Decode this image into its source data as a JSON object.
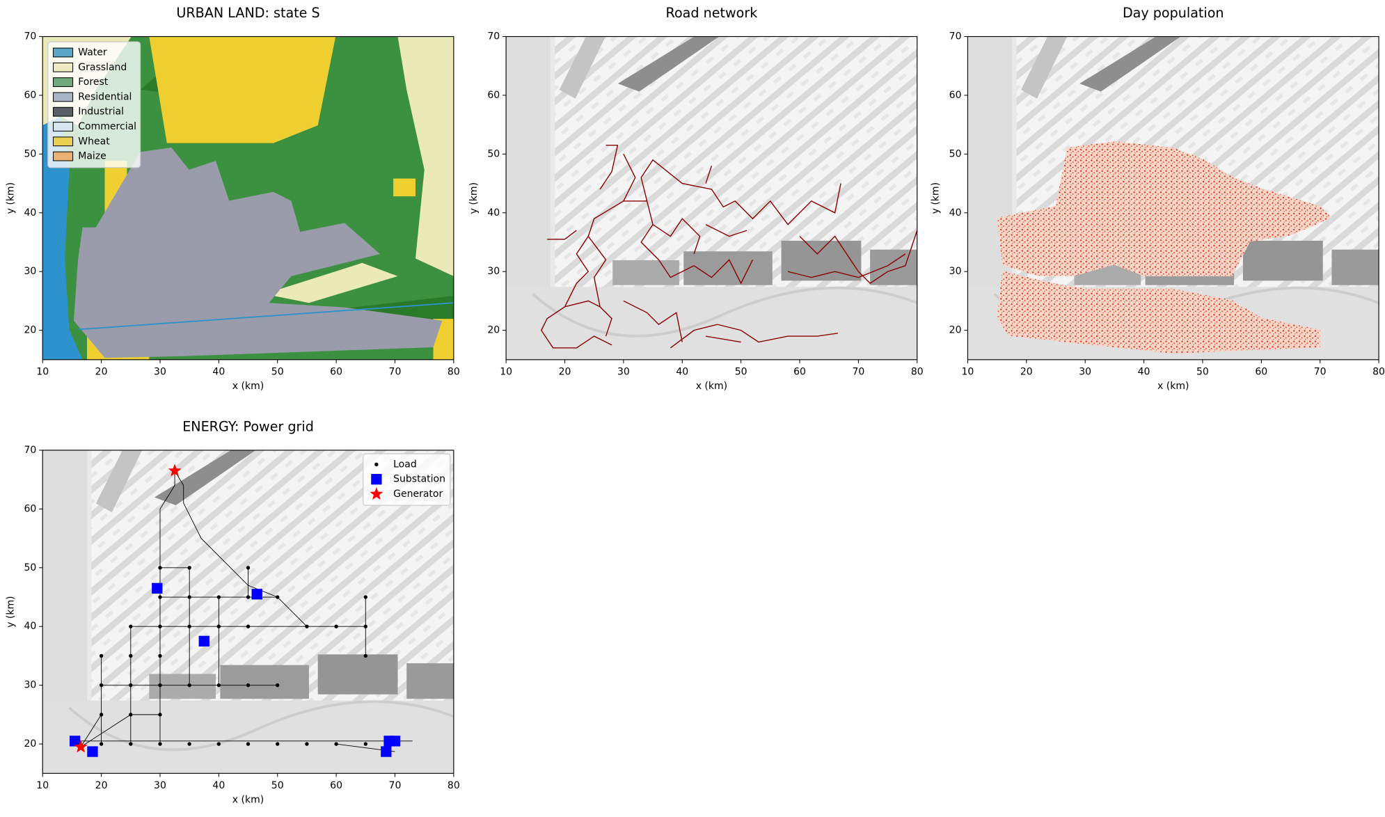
{
  "chart_data": [
    {
      "type": "landuse",
      "title": "URBAN LAND: state S",
      "xlabel": "x (km)",
      "ylabel": "y (km)",
      "xlim": [
        10,
        80
      ],
      "ylim": [
        15,
        70
      ],
      "xticks": [
        10,
        20,
        30,
        40,
        50,
        60,
        70,
        80
      ],
      "yticks": [
        20,
        30,
        40,
        50,
        60,
        70
      ],
      "legend_position": "upper left",
      "categories": [
        "Water",
        "Grassland",
        "Forest",
        "Residential",
        "Industrial",
        "Commercial",
        "Wheat",
        "Maize"
      ],
      "colors": [
        "#5aa6c6",
        "#ecebc2",
        "#6eaa7c",
        "#a9b5c4",
        "#5b6068",
        "#d9e5ef",
        "#e9d152",
        "#e9b273"
      ]
    },
    {
      "type": "roads",
      "title": "Road network",
      "xlabel": "x (km)",
      "ylabel": "y (km)",
      "xlim": [
        10,
        80
      ],
      "ylim": [
        15,
        70
      ],
      "xticks": [
        10,
        20,
        30,
        40,
        50,
        60,
        70,
        80
      ],
      "yticks": [
        20,
        30,
        40,
        50,
        60,
        70
      ],
      "color": "#8b0000",
      "x": [
        27,
        29,
        28,
        26,
        null,
        30,
        32,
        30,
        25,
        24,
        22,
        24,
        22,
        20,
        17,
        16,
        18,
        22,
        25,
        28,
        null,
        24,
        27,
        25,
        26,
        28,
        27,
        null,
        30,
        34,
        33,
        35,
        40,
        45,
        47,
        49,
        52,
        55,
        58,
        62,
        66,
        67,
        null,
        34,
        35,
        33,
        36,
        38,
        42,
        45,
        48,
        50,
        52,
        null,
        35,
        38,
        40,
        43,
        42,
        null,
        17,
        20,
        22,
        null,
        30,
        34,
        36,
        39,
        40,
        null,
        38,
        42,
        46,
        50,
        53,
        58,
        63,
        66.5,
        null,
        44,
        50,
        null,
        60,
        63,
        66,
        68,
        70,
        72,
        75,
        78,
        80,
        null,
        58,
        62,
        66,
        70,
        75,
        78,
        null,
        44,
        48,
        51,
        null,
        45,
        44,
        null,
        20,
        24,
        26
      ],
      "y": [
        51.5,
        51.5,
        47,
        44,
        null,
        50,
        46,
        42,
        39,
        36,
        33,
        30,
        28,
        24,
        22,
        20,
        17,
        17,
        19,
        17.5,
        null,
        36,
        32,
        29,
        24,
        22,
        19,
        null,
        42,
        42,
        46,
        49,
        45,
        44,
        41,
        42,
        39,
        42,
        38,
        42,
        40,
        45,
        null,
        42,
        38,
        35,
        32,
        29,
        31,
        29,
        32,
        28,
        32,
        null,
        38,
        36,
        39,
        36,
        33,
        null,
        35.5,
        35.5,
        37,
        null,
        25,
        23,
        21,
        23,
        18,
        null,
        17,
        20,
        21,
        20,
        18,
        19,
        19,
        19.5,
        null,
        19,
        18,
        null,
        36,
        33,
        36,
        33,
        30,
        28,
        30,
        31,
        37,
        null,
        30,
        29,
        30,
        29,
        31,
        33,
        null,
        38,
        36,
        37,
        null,
        48,
        45,
        null,
        24,
        25,
        24
      ]
    },
    {
      "type": "density",
      "title": "Day population",
      "xlabel": "x (km)",
      "ylabel": "y (km)",
      "xlim": [
        10,
        80
      ],
      "ylim": [
        15,
        70
      ],
      "xticks": [
        10,
        20,
        30,
        40,
        50,
        60,
        70,
        80
      ],
      "yticks": [
        20,
        30,
        40,
        50,
        60,
        70
      ],
      "color": "#d7301f"
    },
    {
      "type": "scatter",
      "title": "ENERGY: Power grid",
      "xlabel": "x (km)",
      "ylabel": "y (km)",
      "xlim": [
        10,
        80
      ],
      "ylim": [
        15,
        70
      ],
      "xticks": [
        10,
        20,
        30,
        40,
        50,
        60,
        70,
        80
      ],
      "yticks": [
        20,
        30,
        40,
        50,
        60,
        70
      ],
      "legend_position": "upper right",
      "edges": {
        "color": "#000000",
        "x": [
          15.5,
          73,
          null,
          20,
          20,
          null,
          25,
          25,
          null,
          30,
          30,
          null,
          35,
          35,
          null,
          40,
          40,
          null,
          20,
          50,
          null,
          25,
          65,
          null,
          30,
          50,
          55,
          null,
          30,
          35,
          null,
          65,
          65,
          null,
          30,
          32.5,
          32.5,
          null,
          32.5,
          34,
          34,
          37,
          45,
          50,
          null,
          16.5,
          25,
          30,
          null,
          16.5,
          20,
          null,
          60,
          70,
          null,
          45,
          45
        ],
        "y": [
          20.5,
          20.5,
          null,
          35,
          20,
          null,
          40,
          20,
          null,
          60,
          20,
          null,
          50,
          30,
          null,
          45,
          30,
          null,
          30,
          30,
          null,
          40,
          40,
          null,
          45,
          45,
          40,
          null,
          50,
          50,
          null,
          35,
          45,
          null,
          60,
          64,
          66.5,
          null,
          66.5,
          64,
          61,
          55,
          47,
          45,
          null,
          19.5,
          25,
          25,
          null,
          19.5,
          25,
          null,
          20,
          18.7,
          null,
          50,
          45
        ]
      },
      "series": [
        {
          "name": "Load",
          "color": "#000000",
          "marker": "circle",
          "x": [
            20,
            25,
            30,
            35,
            40,
            45,
            50,
            55,
            60,
            65,
            20,
            25,
            30,
            20,
            25,
            30,
            35,
            40,
            45,
            50,
            20,
            25,
            30,
            65,
            25,
            30,
            35,
            40,
            45,
            55,
            60,
            65,
            30,
            35,
            40,
            45,
            50,
            65,
            30,
            35,
            45
          ],
          "y": [
            20,
            20,
            20,
            20,
            20,
            20,
            20,
            20,
            20,
            20,
            25,
            25,
            25,
            30,
            30,
            30,
            30,
            30,
            30,
            30,
            35,
            35,
            35,
            35,
            40,
            40,
            40,
            40,
            40,
            40,
            40,
            40,
            45,
            45,
            45,
            45,
            45,
            45,
            50,
            50,
            50
          ]
        },
        {
          "name": "Substation",
          "color": "#0000ff",
          "marker": "square",
          "x": [
            15.5,
            18.5,
            29.5,
            37.5,
            46.5,
            68.5,
            69,
            70
          ],
          "y": [
            20.5,
            18.7,
            46.5,
            37.5,
            45.5,
            18.7,
            20.5,
            20.5
          ]
        },
        {
          "name": "Generator",
          "color": "#ff0000",
          "marker": "star",
          "x": [
            32.5,
            16.5
          ],
          "y": [
            66.5,
            19.5
          ]
        }
      ]
    }
  ]
}
